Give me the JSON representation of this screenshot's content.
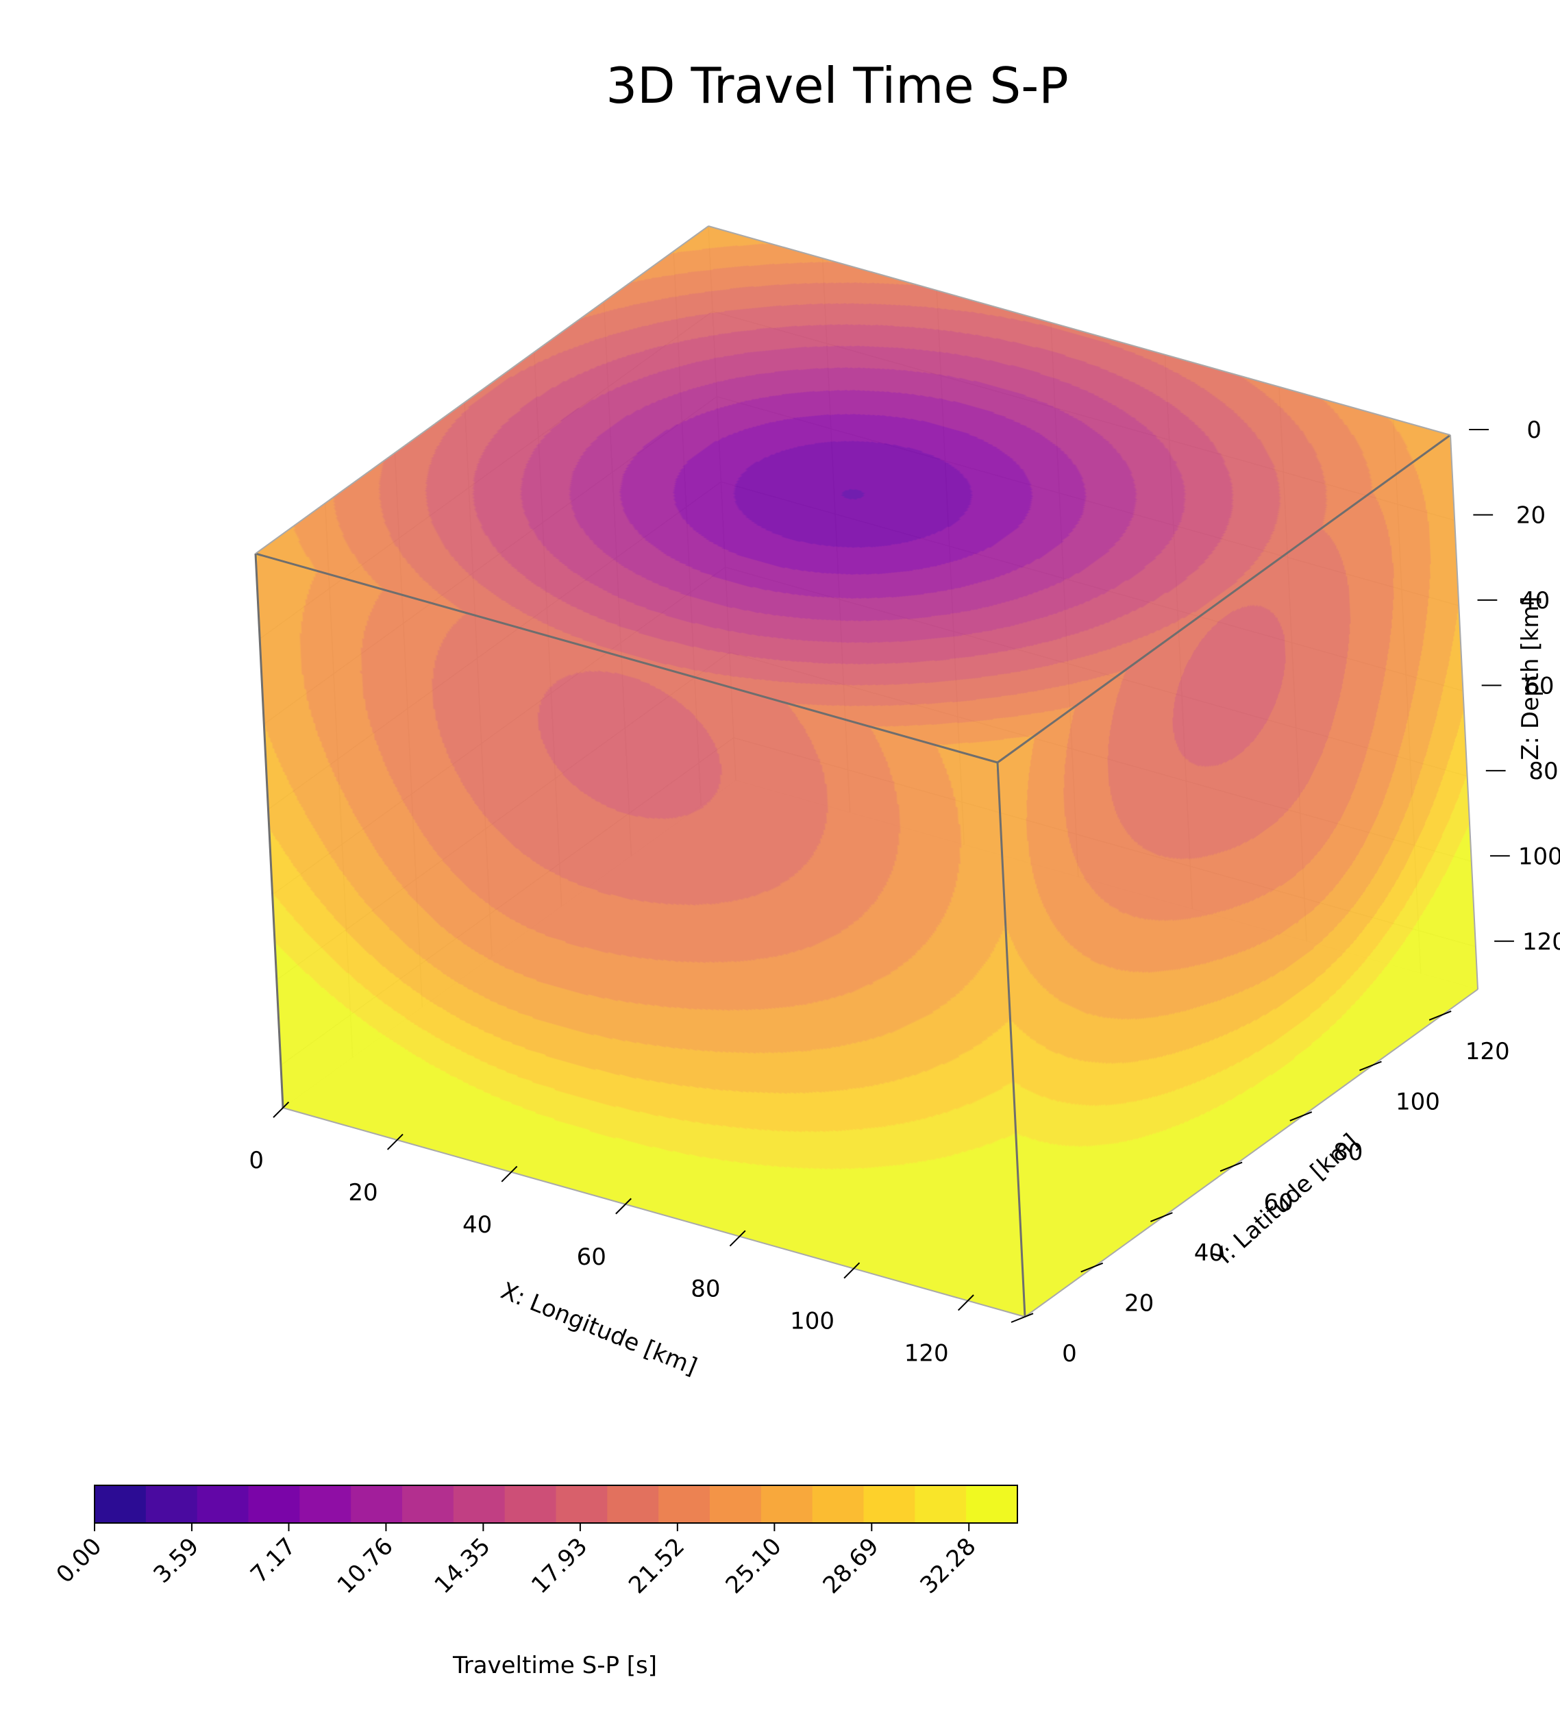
{
  "chart_data": {
    "type": "3d-contour-volume",
    "title": "3D Travel Time S-P",
    "colormap": "plasma",
    "source_km": {
      "x": 65,
      "y": 65,
      "z": 20
    },
    "x_axis": {
      "label": "X: Longitude [km]",
      "range": [
        0,
        130
      ],
      "ticks": [
        "0",
        "20",
        "40",
        "60",
        "80",
        "100",
        "120"
      ]
    },
    "y_axis": {
      "label": "Y: Latitude [km]",
      "range": [
        0,
        130
      ],
      "ticks": [
        "0",
        "20",
        "40",
        "60",
        "80",
        "100",
        "120"
      ]
    },
    "z_axis": {
      "label": "Z: Depth [km]",
      "range": [
        0,
        130
      ],
      "inverted": true,
      "ticks": [
        "0",
        "20",
        "40",
        "60",
        "80",
        "100",
        "120"
      ]
    },
    "colorbar": {
      "label": "Traveltime S-P [s]",
      "min": 0.0,
      "max": 34.07,
      "levels": 19,
      "tick_values": [
        0.0,
        3.59,
        7.17,
        10.76,
        14.35,
        17.93,
        21.52,
        25.1,
        28.69,
        32.28
      ],
      "tick_labels": [
        "0.00",
        "3.59",
        "7.17",
        "10.76",
        "14.35",
        "17.93",
        "21.52",
        "25.10",
        "28.69",
        "32.28"
      ],
      "colors": [
        "#2c0c94",
        "#4a0aa0",
        "#6206a7",
        "#7a05a8",
        "#8f0ea5",
        "#a21e9b",
        "#b32f8f",
        "#c13f83",
        "#cd4f77",
        "#d8606b",
        "#e2715e",
        "#ec8252",
        "#f39447",
        "#f8a83c",
        "#fbbc32",
        "#fdd12b",
        "#f9e529",
        "#f0f921"
      ]
    }
  }
}
